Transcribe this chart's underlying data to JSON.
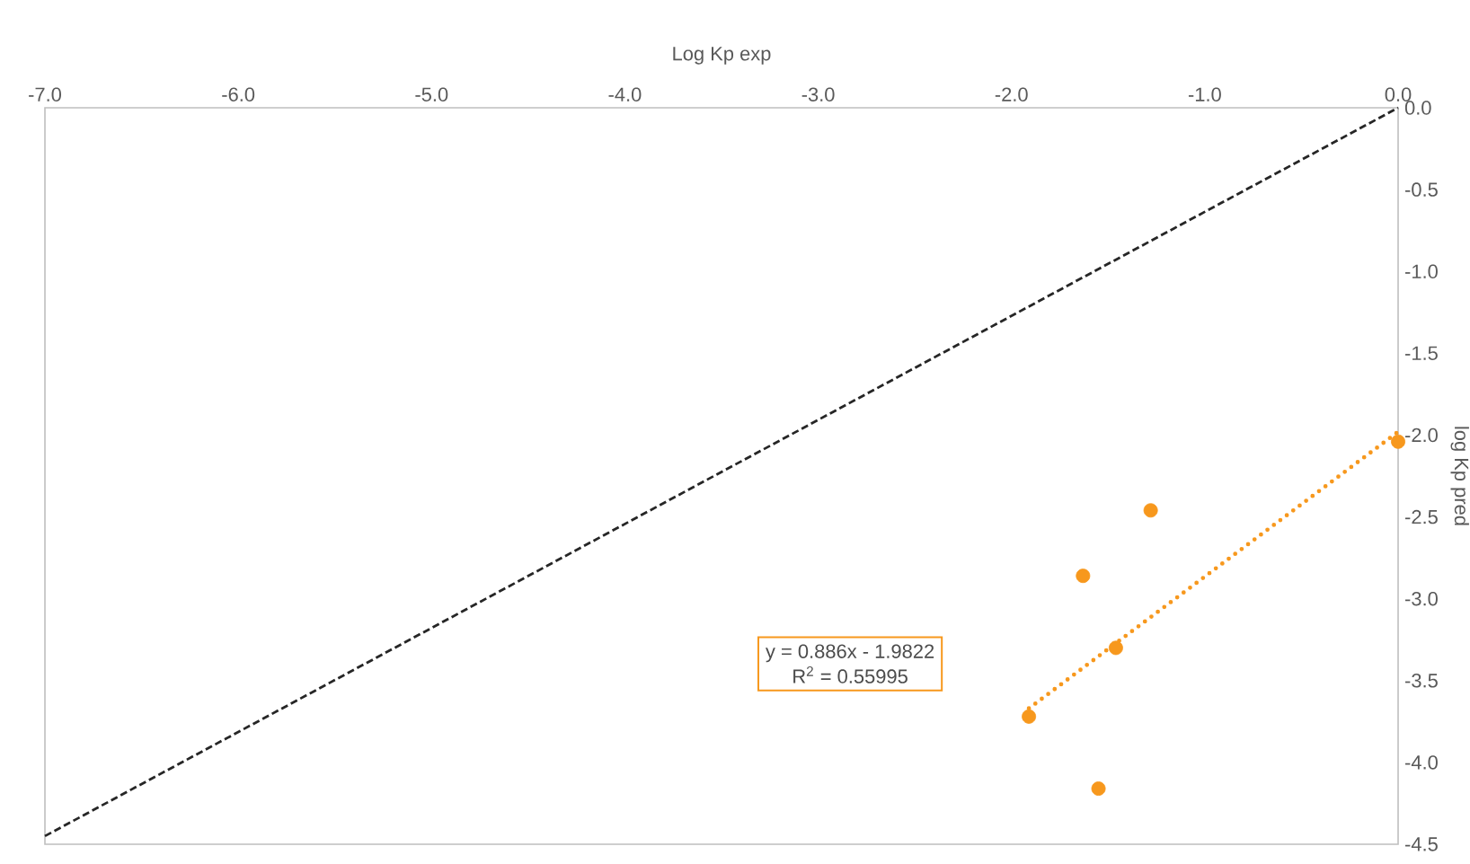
{
  "chart_data": {
    "type": "scatter",
    "xlabel": "Log Kp  exp",
    "ylabel": "log  Kp pred",
    "xlim": [
      -7,
      0
    ],
    "ylim": [
      -4.5,
      0
    ],
    "xticks": [
      {
        "value": -7,
        "label": "-7.0"
      },
      {
        "value": -6,
        "label": "-6.0"
      },
      {
        "value": -5,
        "label": "-5.0"
      },
      {
        "value": -4,
        "label": "-4.0"
      },
      {
        "value": -3,
        "label": "-3.0"
      },
      {
        "value": -2,
        "label": "-2.0"
      },
      {
        "value": -1,
        "label": "-1.0"
      },
      {
        "value": 0,
        "label": "0.0"
      }
    ],
    "yticks": [
      {
        "value": 0,
        "label": "0.0"
      },
      {
        "value": -0.5,
        "label": "-0.5"
      },
      {
        "value": -1,
        "label": "-1.0"
      },
      {
        "value": -1.5,
        "label": "-1.5"
      },
      {
        "value": -2,
        "label": "-2.0"
      },
      {
        "value": -2.5,
        "label": "-2.5"
      },
      {
        "value": -3,
        "label": "-3.0"
      },
      {
        "value": -3.5,
        "label": "-3.5"
      },
      {
        "value": -4,
        "label": "-4.0"
      },
      {
        "value": -4.5,
        "label": "-4.5"
      }
    ],
    "series": [
      {
        "color": "#f7981d",
        "marker": "circle",
        "x": [
          0,
          -1.28,
          -1.63,
          -1.46,
          -1.91,
          -1.55
        ],
        "values": [
          -2.04,
          -2.46,
          -2.86,
          -3.3,
          -3.72,
          -4.16
        ]
      },
      {
        "type": "line",
        "color": "#f7981d",
        "marker": "none",
        "line_style": "dotted",
        "x": [
          -1.91,
          0
        ],
        "values": [
          -3.67,
          -1.98
        ]
      },
      {
        "type": "line",
        "color": "#262626",
        "marker": "none",
        "line_style": "dashed",
        "x": [
          -7,
          0
        ],
        "values": [
          -4.45,
          0
        ]
      }
    ],
    "annotations": [
      "y = 0.886x - 1.9822",
      "R$^{2}$ = 0.55995"
    ]
  }
}
